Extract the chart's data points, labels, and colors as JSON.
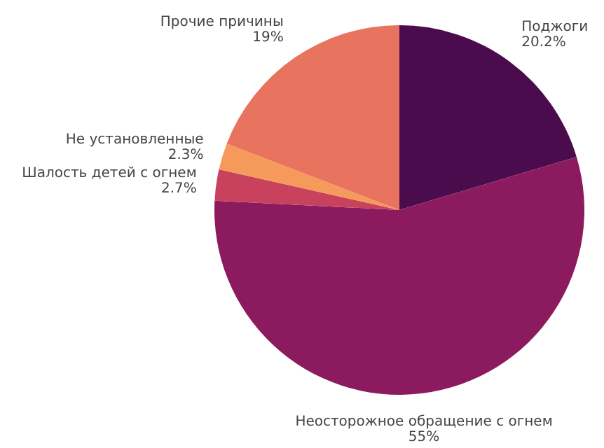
{
  "chart_data": {
    "type": "pie",
    "categories": [
      "Поджоги",
      "Неосторожное обращение с огнем",
      "Шалость детей с огнем",
      "Не установленные",
      "Прочие причины"
    ],
    "values": [
      20.2,
      55,
      2.7,
      2.3,
      19
    ],
    "value_labels": [
      "20.2%",
      "55%",
      "2.7%",
      "2.3%",
      "19%"
    ],
    "colors": [
      "#4b0c4e",
      "#8c1a5e",
      "#c8415d",
      "#f59a5a",
      "#e8735e"
    ],
    "legend": false
  }
}
